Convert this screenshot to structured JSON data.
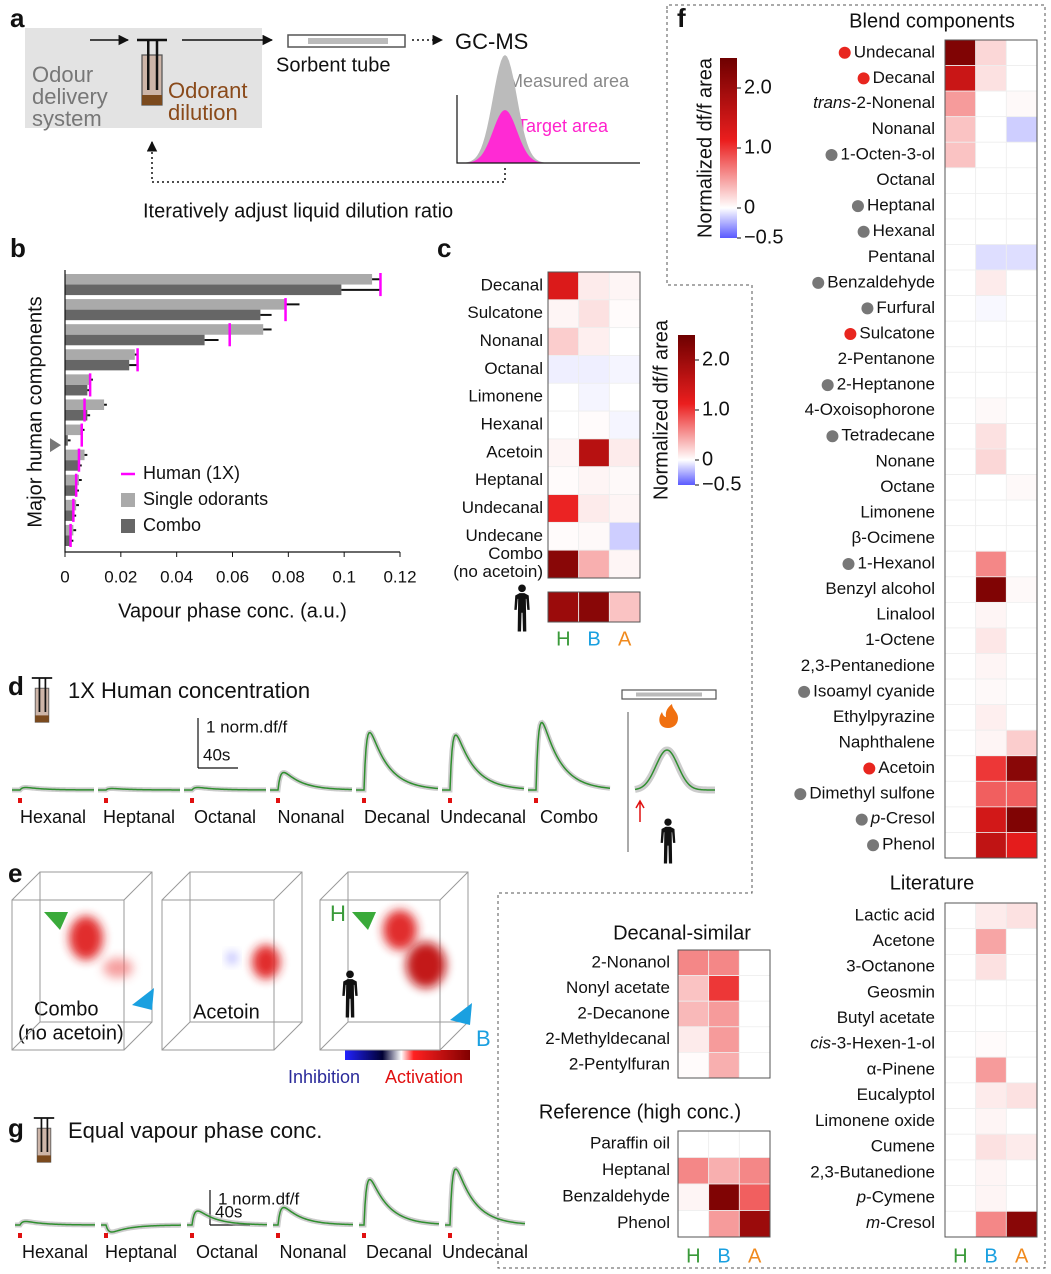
{
  "panel_labels": [
    "a",
    "b",
    "c",
    "d",
    "e",
    "f",
    "g"
  ],
  "panel_a": {
    "delivery": [
      "Odour",
      "delivery",
      "system"
    ],
    "dilution": [
      "Odorant",
      "dilution"
    ],
    "sorbent": "Sorbent tube",
    "instrument": "GC-MS",
    "measured": "Measured area",
    "target": "Target area",
    "feedback": "Iteratively adjust liquid dilution ratio"
  },
  "panel_e": {
    "combo": [
      "Combo",
      "(no acetoin)"
    ],
    "acetoin": "Acetoin",
    "h": "H",
    "b": "B",
    "inhibition": "Inhibition",
    "activation": "Activation"
  },
  "chart_data": [
    {
      "type": "bar",
      "orientation": "horizontal",
      "y_label": "Major human components",
      "x_label": "Vapour phase conc. (a.u.)",
      "categories": [
        null,
        null,
        null,
        null,
        null,
        null,
        null,
        null,
        null,
        null,
        null
      ],
      "marker_row": 6,
      "xlim": [
        0,
        0.12
      ],
      "xticks": [
        0,
        0.02,
        0.04,
        0.06,
        0.08,
        0.1,
        0.12
      ],
      "series": [
        {
          "name": "Human (1X)",
          "color": "#ff00ff",
          "style": "tick",
          "values": [
            0.113,
            0.079,
            0.059,
            0.026,
            0.009,
            0.007,
            0.006,
            0.005,
            0.004,
            0.003,
            0.002
          ]
        },
        {
          "name": "Single odorants",
          "color": "#aaaaaa",
          "style": "bar",
          "values": [
            0.11,
            0.079,
            0.071,
            0.025,
            0.009,
            0.014,
            0.006,
            0.007,
            0.005,
            0.004,
            0.003
          ],
          "errors": [
            0.003,
            0.005,
            0.003,
            0.001,
            0.001,
            0.001,
            0.001,
            0.001,
            0.001,
            0.001,
            0.001
          ]
        },
        {
          "name": "Combo",
          "color": "#666666",
          "style": "bar",
          "values": [
            0.099,
            0.07,
            0.05,
            0.023,
            0.008,
            0.008,
            0.001,
            0.005,
            0.004,
            0.003,
            0.002
          ],
          "errors": [
            0.014,
            0.004,
            0.005,
            0.003,
            0.001,
            0.001,
            0.001,
            0.001,
            0.001,
            0.001,
            0.001
          ]
        }
      ]
    },
    {
      "type": "heatmap",
      "rows": [
        "Decanal",
        "Sulcatone",
        "Nonanal",
        "Octanal",
        "Limonene",
        "Hexanal",
        "Acetoin",
        "Heptanal",
        "Undecanal",
        "Undecane",
        [
          "Combo",
          "(no acetoin)"
        ]
      ],
      "columns": [
        "H",
        "B",
        "A"
      ],
      "column_colors": [
        "#3a9a3a",
        "#1aa0e0",
        "#f08a1e"
      ],
      "values": [
        [
          1.3,
          0.1,
          0.05
        ],
        [
          0.05,
          0.15,
          0.02
        ],
        [
          0.25,
          0.08,
          0
        ],
        [
          -0.05,
          -0.05,
          -0.03
        ],
        [
          0,
          -0.03,
          0
        ],
        [
          0,
          0.02,
          -0.03
        ],
        [
          0.05,
          1.7,
          0.1
        ],
        [
          0.02,
          0.05,
          0.03
        ],
        [
          1.1,
          0.1,
          0.05
        ],
        [
          0.02,
          0.03,
          -0.15
        ],
        [
          2.2,
          0.4,
          0.05
        ]
      ],
      "human_values": [
        2.0,
        2.2,
        0.3
      ],
      "colorbar": {
        "label": "Normalized df/f area",
        "lim": [
          -0.5,
          2.5
        ],
        "ticks": [
          {
            "value": 2,
            "label": "2.0"
          },
          {
            "value": 1,
            "label": "1.0"
          },
          0,
          {
            "value": -0.5,
            "label": "−0.5"
          }
        ]
      }
    },
    {
      "type": "heatmap",
      "title": "Blend components",
      "rows": [
        "Undecanal",
        "Decanal",
        "trans-2-Nonenal",
        "Nonanal",
        "1-Octen-3-ol",
        "Octanal",
        "Heptanal",
        "Hexanal",
        "Pentanal",
        "Benzaldehyde",
        "Furfural",
        "Sulcatone",
        "2-Pentanone",
        "2-Heptanone",
        "4-Oxoisophorone",
        "Tetradecane",
        "Nonane",
        "Octane",
        "Limonene",
        "β-Ocimene",
        "1-Hexanol",
        "Benzyl alcohol",
        "Linalool",
        "1-Octene",
        "2,3-Pentanedione",
        "Isoamyl cyanide",
        "Ethylpyrazine",
        "Naphthalene",
        "Acetoin",
        "Dimethyl sulfone",
        "p-Cresol",
        "Phenol"
      ],
      "italic_rows": [
        2,
        30
      ],
      "dots": [
        "#e8261f",
        "#e8261f",
        null,
        null,
        "#777777",
        null,
        "#777777",
        "#777777",
        null,
        "#777777",
        "#777777",
        "#e8261f",
        null,
        "#777777",
        null,
        "#777777",
        null,
        null,
        null,
        null,
        "#777777",
        null,
        null,
        null,
        null,
        "#777777",
        null,
        null,
        "#e8261f",
        "#777777",
        "#777777",
        "#777777"
      ],
      "values": [
        [
          2.3,
          0.2,
          0
        ],
        [
          1.5,
          0.15,
          0
        ],
        [
          0.5,
          0,
          0.03
        ],
        [
          0.3,
          0,
          -0.15
        ],
        [
          0.3,
          0,
          0
        ],
        [
          0,
          0,
          0
        ],
        [
          0,
          0,
          0
        ],
        [
          0,
          0,
          0
        ],
        [
          0,
          -0.1,
          -0.1
        ],
        [
          0,
          0.1,
          0
        ],
        [
          0,
          -0.02,
          0
        ],
        [
          0,
          0,
          0
        ],
        [
          0,
          0,
          0
        ],
        [
          0,
          0,
          0
        ],
        [
          0,
          0.03,
          0
        ],
        [
          0,
          0.15,
          0
        ],
        [
          0,
          0.2,
          0
        ],
        [
          0,
          0,
          0.03
        ],
        [
          0,
          0,
          0
        ],
        [
          0,
          0,
          0
        ],
        [
          0,
          0.6,
          0
        ],
        [
          0,
          2.3,
          0.03
        ],
        [
          0,
          0.05,
          0
        ],
        [
          0,
          0.12,
          0
        ],
        [
          0,
          0.05,
          0
        ],
        [
          0,
          0.03,
          0
        ],
        [
          0,
          0.08,
          0
        ],
        [
          0,
          0.05,
          0.25
        ],
        [
          0,
          1.0,
          2.2
        ],
        [
          0,
          0.8,
          0.8
        ],
        [
          0,
          1.4,
          2.3
        ],
        [
          0,
          1.6,
          1.2
        ]
      ],
      "colorbar": {
        "label": "Normalized df/f area",
        "lim": [
          -0.5,
          2.5
        ],
        "ticks": [
          {
            "value": 2,
            "label": "2.0"
          },
          {
            "value": 1,
            "label": "1.0"
          },
          0,
          {
            "value": -0.5,
            "label": "−0.5"
          }
        ]
      }
    },
    {
      "type": "heatmap",
      "title": "Decanal-similar",
      "rows": [
        "2-Nonanol",
        "Nonyl acetate",
        "2-Decanone",
        "2-Methyldecanal",
        "2-Pentylfuran"
      ],
      "values": [
        [
          0.6,
          0.6,
          0
        ],
        [
          0.3,
          1.0,
          0
        ],
        [
          0.35,
          0.5,
          0
        ],
        [
          0.1,
          0.5,
          0
        ],
        [
          0.02,
          0.4,
          0
        ]
      ]
    },
    {
      "type": "heatmap",
      "title": "Reference (high conc.)",
      "rows": [
        "Paraffin oil",
        "Heptanal",
        "Benzaldehyde",
        "Phenol"
      ],
      "columns": [
        "H",
        "B",
        "A"
      ],
      "column_colors": [
        "#3a9a3a",
        "#1aa0e0",
        "#f08a1e"
      ],
      "values": [
        [
          0,
          0,
          0
        ],
        [
          0.6,
          0.4,
          0.6
        ],
        [
          0.05,
          2.3,
          0.8
        ],
        [
          0,
          0.5,
          2.0
        ]
      ]
    },
    {
      "type": "heatmap",
      "title": "Literature",
      "rows": [
        "Lactic acid",
        "Acetone",
        "3-Octanone",
        "Geosmin",
        "Butyl acetate",
        "cis-3-Hexen-1-ol",
        "α-Pinene",
        "Eucalyptol",
        "Limonene oxide",
        "Cumene",
        "2,3-Butanedione",
        "p-Cymene",
        "m-Cresol"
      ],
      "italic_rows": [
        5,
        11,
        12
      ],
      "columns": [
        "H",
        "B",
        "A"
      ],
      "column_colors": [
        "#3a9a3a",
        "#1aa0e0",
        "#f08a1e"
      ],
      "values": [
        [
          0,
          0.1,
          0.15
        ],
        [
          0,
          0.45,
          0
        ],
        [
          0,
          0.15,
          0
        ],
        [
          0,
          0,
          0
        ],
        [
          0,
          0,
          0
        ],
        [
          0,
          0.02,
          0
        ],
        [
          0,
          0.5,
          0
        ],
        [
          0,
          0.1,
          0.15
        ],
        [
          0,
          0.05,
          0
        ],
        [
          0,
          0.15,
          0.1
        ],
        [
          0,
          0.05,
          0
        ],
        [
          0,
          0.05,
          0
        ],
        [
          0,
          0.6,
          2.2
        ]
      ]
    },
    {
      "type": "traces",
      "title": "1X Human concentration",
      "scale_bar": {
        "value": 1,
        "label": "1 norm.df/f"
      },
      "time_bar": {
        "value": 40,
        "label": "40s"
      },
      "categories": [
        "Hexanal",
        "Heptanal",
        "Octanal",
        "Nonanal",
        "Decanal",
        "Undecanal",
        "Combo"
      ],
      "values": [
        0.05,
        0.03,
        0.05,
        0.35,
        1.15,
        1.1,
        1.35
      ],
      "color": "#2f8f2f",
      "human_value": 0.8
    },
    {
      "type": "traces",
      "title": "Equal vapour phase conc.",
      "scale_bar": {
        "value": 1,
        "label": "1 norm.df/f"
      },
      "time_bar": {
        "value": 40,
        "label": "40s"
      },
      "categories": [
        "Hexanal",
        "Heptanal",
        "Octanal",
        "Nonanal",
        "Decanal",
        "Undecanal"
      ],
      "values": [
        0.1,
        -0.2,
        0.4,
        0.5,
        1.3,
        1.6
      ],
      "color": "#2f8f2f"
    }
  ]
}
